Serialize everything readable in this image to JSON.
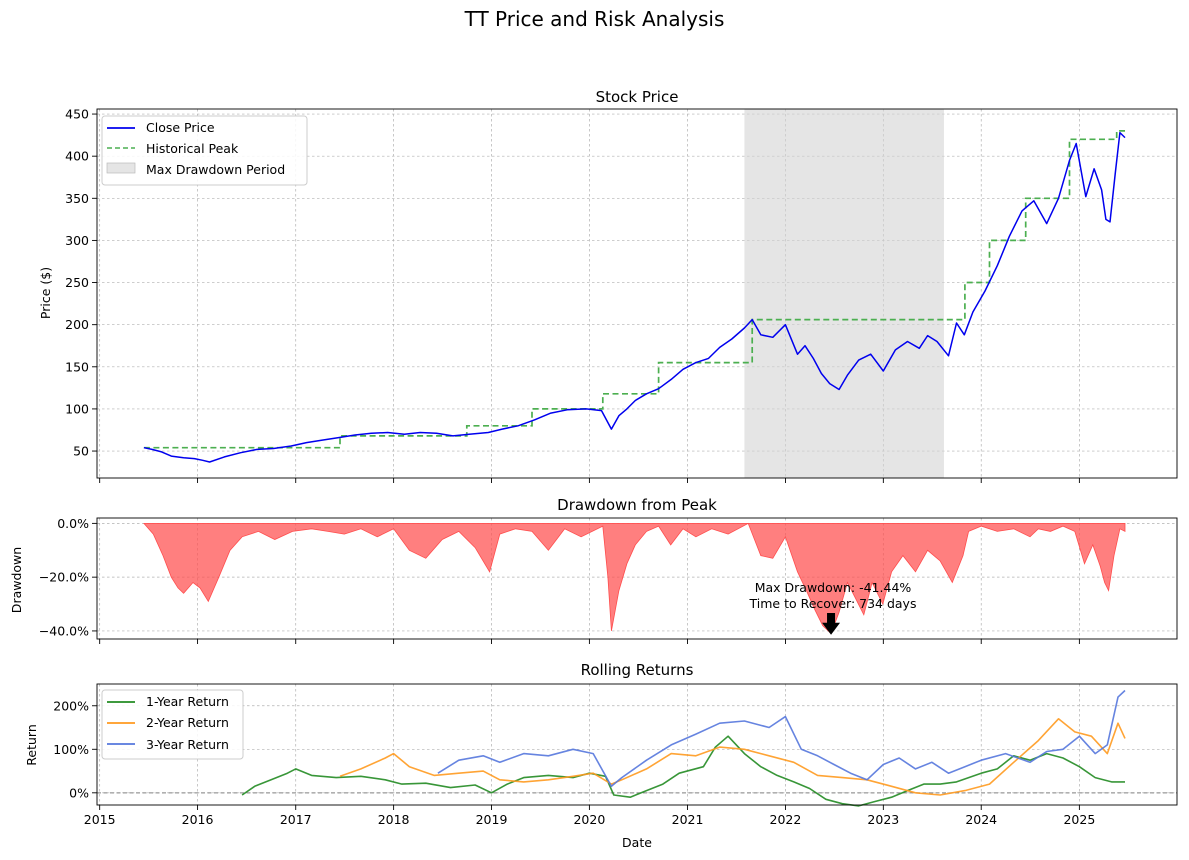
{
  "figure": {
    "title": "TT Price and Risk Analysis"
  },
  "colors": {
    "close": "#0000ee",
    "peak": "#4caf50",
    "shade": "#d3d3d3",
    "drawdown": "#ff4d4d",
    "r1": "#228b22",
    "r2": "#ff9a1f",
    "r3": "#5577dd"
  },
  "chart_data": [
    {
      "id": "price",
      "type": "line",
      "title": "Stock Price",
      "xlabel": "",
      "ylabel": "Price ($)",
      "xlim": [
        "2014-12-22",
        "2025-12-31"
      ],
      "ylim": [
        18,
        456
      ],
      "yticks": [
        50,
        100,
        150,
        200,
        250,
        300,
        350,
        400,
        450
      ],
      "grid": true,
      "legend": {
        "placement": "upper-left",
        "entries": [
          "Close Price",
          "Historical Peak",
          "Max Drawdown Period"
        ]
      },
      "max_drawdown_period": {
        "start": "2021-08-01",
        "end": "2023-08-15"
      },
      "series": [
        {
          "name": "Close Price",
          "x": [
            "2015-06-15",
            "2015-07-15",
            "2015-08-20",
            "2015-09-25",
            "2015-11-10",
            "2015-12-20",
            "2016-01-20",
            "2016-02-15",
            "2016-04-10",
            "2016-06-10",
            "2016-08-10",
            "2016-10-10",
            "2016-12-15",
            "2017-02-10",
            "2017-04-10",
            "2017-06-10",
            "2017-08-10",
            "2017-10-10",
            "2017-12-10",
            "2018-02-10",
            "2018-04-10",
            "2018-06-10",
            "2018-08-10",
            "2018-10-10",
            "2018-12-20",
            "2019-02-10",
            "2019-04-10",
            "2019-06-10",
            "2019-08-10",
            "2019-10-10",
            "2019-12-20",
            "2020-02-15",
            "2020-03-23",
            "2020-04-20",
            "2020-05-20",
            "2020-06-20",
            "2020-08-01",
            "2020-09-15",
            "2020-11-01",
            "2020-12-15",
            "2021-02-01",
            "2021-03-20",
            "2021-05-01",
            "2021-06-15",
            "2021-08-01",
            "2021-08-30",
            "2021-10-01",
            "2021-11-15",
            "2022-01-01",
            "2022-02-15",
            "2022-03-15",
            "2022-04-15",
            "2022-05-15",
            "2022-06-15",
            "2022-07-20",
            "2022-08-20",
            "2022-10-01",
            "2022-11-15",
            "2023-01-01",
            "2023-02-15",
            "2023-04-01",
            "2023-05-15",
            "2023-06-15",
            "2023-07-20",
            "2023-09-01",
            "2023-10-01",
            "2023-10-30",
            "2023-12-01",
            "2024-01-15",
            "2024-03-01",
            "2024-04-15",
            "2024-06-01",
            "2024-07-15",
            "2024-09-01",
            "2024-10-15",
            "2024-11-25",
            "2024-12-20",
            "2025-01-25",
            "2025-02-25",
            "2025-03-25",
            "2025-04-10",
            "2025-04-25",
            "2025-05-15",
            "2025-06-01",
            "2025-06-20"
          ],
          "y": [
            54,
            52,
            49,
            44,
            42,
            41,
            39,
            37,
            43,
            48,
            52,
            53,
            56,
            60,
            63,
            66,
            69,
            71,
            72,
            70,
            72,
            71,
            68,
            70,
            72,
            76,
            80,
            87,
            95,
            99,
            100,
            98,
            76,
            92,
            100,
            110,
            118,
            124,
            135,
            147,
            155,
            160,
            173,
            183,
            196,
            206,
            188,
            185,
            200,
            165,
            175,
            160,
            142,
            130,
            123,
            140,
            158,
            165,
            145,
            170,
            180,
            172,
            187,
            180,
            163,
            202,
            188,
            215,
            240,
            270,
            305,
            335,
            347,
            320,
            350,
            395,
            415,
            352,
            385,
            360,
            325,
            322,
            380,
            428,
            422
          ]
        },
        {
          "name": "Historical Peak",
          "x": [
            "2015-06-15",
            "2017-06-15",
            "2017-06-15",
            "2018-10-01",
            "2018-10-01",
            "2019-06-01",
            "2019-06-01",
            "2020-02-20",
            "2020-02-20",
            "2020-09-15",
            "2020-09-15",
            "2021-08-30",
            "2021-08-30",
            "2023-11-01",
            "2023-11-01",
            "2024-02-01",
            "2024-02-01",
            "2024-06-15",
            "2024-06-15",
            "2024-11-25",
            "2024-11-25",
            "2025-05-20",
            "2025-05-20",
            "2025-06-20"
          ],
          "y": [
            54,
            54,
            68,
            68,
            80,
            80,
            100,
            100,
            118,
            118,
            155,
            155,
            206,
            206,
            250,
            250,
            300,
            300,
            350,
            350,
            420,
            420,
            430,
            430
          ]
        }
      ]
    },
    {
      "id": "drawdown",
      "type": "area",
      "title": "Drawdown from Peak",
      "xlabel": "",
      "ylabel": "Drawdown",
      "xlim": [
        "2014-12-22",
        "2025-12-31"
      ],
      "ylim": [
        -0.43,
        0.02
      ],
      "yticks": [
        0.0,
        -0.2,
        -0.4
      ],
      "yticklabels": [
        "0.0%",
        "−20.0%",
        "−40.0%"
      ],
      "grid": true,
      "annotation": {
        "text_line1": "Max Drawdown: -41.44%",
        "text_line2": "Time to Recover: 734 days",
        "x": "2022-06-20",
        "y": -0.4144
      },
      "series": [
        {
          "name": "Drawdown",
          "x": [
            "2015-06-15",
            "2015-07-20",
            "2015-08-25",
            "2015-09-25",
            "2015-10-20",
            "2015-11-10",
            "2015-12-15",
            "2016-01-10",
            "2016-02-10",
            "2016-03-20",
            "2016-05-01",
            "2016-06-15",
            "2016-08-15",
            "2016-10-15",
            "2016-12-20",
            "2017-03-01",
            "2017-05-01",
            "2017-07-01",
            "2017-09-01",
            "2017-11-01",
            "2018-01-01",
            "2018-03-01",
            "2018-05-01",
            "2018-07-01",
            "2018-09-01",
            "2018-11-01",
            "2018-12-25",
            "2019-02-01",
            "2019-04-01",
            "2019-06-01",
            "2019-08-01",
            "2019-10-01",
            "2019-12-01",
            "2020-02-20",
            "2020-03-10",
            "2020-03-23",
            "2020-04-20",
            "2020-05-20",
            "2020-06-20",
            "2020-08-01",
            "2020-09-15",
            "2020-10-30",
            "2020-12-15",
            "2021-02-01",
            "2021-04-01",
            "2021-06-01",
            "2021-08-15",
            "2021-10-01",
            "2021-11-15",
            "2022-01-01",
            "2022-02-15",
            "2022-03-20",
            "2022-04-20",
            "2022-05-20",
            "2022-06-20",
            "2022-07-20",
            "2022-08-20",
            "2022-09-20",
            "2022-10-20",
            "2022-11-20",
            "2022-12-30",
            "2023-02-01",
            "2023-03-15",
            "2023-05-01",
            "2023-06-15",
            "2023-08-01",
            "2023-09-15",
            "2023-10-25",
            "2023-11-15",
            "2024-01-01",
            "2024-03-01",
            "2024-05-01",
            "2024-07-01",
            "2024-08-01",
            "2024-09-15",
            "2024-11-01",
            "2024-12-15",
            "2025-01-20",
            "2025-02-20",
            "2025-03-20",
            "2025-04-05",
            "2025-04-20",
            "2025-05-10",
            "2025-06-01",
            "2025-06-20"
          ],
          "y": [
            0,
            -0.04,
            -0.12,
            -0.2,
            -0.24,
            -0.26,
            -0.22,
            -0.24,
            -0.29,
            -0.2,
            -0.1,
            -0.05,
            -0.03,
            -0.06,
            -0.03,
            -0.02,
            -0.03,
            -0.04,
            -0.02,
            -0.05,
            -0.02,
            -0.1,
            -0.13,
            -0.06,
            -0.03,
            -0.09,
            -0.18,
            -0.04,
            -0.02,
            -0.03,
            -0.1,
            -0.02,
            -0.05,
            -0.01,
            -0.2,
            -0.4,
            -0.25,
            -0.15,
            -0.08,
            -0.03,
            -0.01,
            -0.08,
            -0.02,
            -0.05,
            -0.02,
            -0.04,
            0,
            -0.12,
            -0.13,
            -0.05,
            -0.18,
            -0.25,
            -0.32,
            -0.38,
            -0.41,
            -0.33,
            -0.22,
            -0.28,
            -0.34,
            -0.22,
            -0.3,
            -0.18,
            -0.12,
            -0.18,
            -0.1,
            -0.14,
            -0.22,
            -0.12,
            -0.03,
            -0.01,
            -0.03,
            -0.02,
            -0.05,
            -0.02,
            -0.03,
            -0.01,
            -0.03,
            -0.15,
            -0.08,
            -0.16,
            -0.22,
            -0.25,
            -0.12,
            -0.02,
            -0.03
          ]
        }
      ]
    },
    {
      "id": "rolling",
      "type": "line",
      "title": "Rolling Returns",
      "xlabel": "Date",
      "ylabel": "Return",
      "xlim": [
        "2014-12-22",
        "2025-12-31"
      ],
      "ylim": [
        -0.28,
        2.5
      ],
      "yticks": [
        0,
        1,
        2
      ],
      "yticklabels": [
        "0%",
        "100%",
        "200%"
      ],
      "xticks": [
        "2015-01-01",
        "2016-01-01",
        "2017-01-01",
        "2018-01-01",
        "2019-01-01",
        "2020-01-01",
        "2021-01-01",
        "2022-01-01",
        "2023-01-01",
        "2024-01-01",
        "2025-01-01"
      ],
      "xticklabels": [
        "2015",
        "2016",
        "2017",
        "2018",
        "2019",
        "2020",
        "2021",
        "2022",
        "2023",
        "2024",
        "2025"
      ],
      "grid": true,
      "legend": {
        "placement": "upper-left",
        "entries": [
          "1-Year Return",
          "2-Year Return",
          "3-Year Return"
        ]
      },
      "series": [
        {
          "name": "1-Year Return",
          "x": [
            "2016-06-15",
            "2016-08-01",
            "2016-10-01",
            "2016-12-01",
            "2017-01-01",
            "2017-03-01",
            "2017-06-01",
            "2017-09-01",
            "2017-12-01",
            "2018-02-01",
            "2018-05-01",
            "2018-08-01",
            "2018-11-01",
            "2019-01-01",
            "2019-03-01",
            "2019-05-01",
            "2019-08-01",
            "2019-11-01",
            "2020-01-01",
            "2020-03-01",
            "2020-04-01",
            "2020-06-01",
            "2020-08-01",
            "2020-10-01",
            "2020-12-01",
            "2021-03-01",
            "2021-04-15",
            "2021-06-01",
            "2021-08-01",
            "2021-10-01",
            "2021-12-01",
            "2022-02-01",
            "2022-04-01",
            "2022-06-01",
            "2022-08-01",
            "2022-10-01",
            "2022-12-01",
            "2023-02-01",
            "2023-04-01",
            "2023-06-01",
            "2023-08-01",
            "2023-10-01",
            "2024-01-01",
            "2024-03-01",
            "2024-05-01",
            "2024-07-01",
            "2024-09-01",
            "2024-11-01",
            "2025-01-01",
            "2025-03-01",
            "2025-05-01",
            "2025-06-20"
          ],
          "y": [
            -0.05,
            0.15,
            0.3,
            0.45,
            0.55,
            0.4,
            0.35,
            0.38,
            0.3,
            0.2,
            0.22,
            0.12,
            0.18,
            0.0,
            0.2,
            0.35,
            0.4,
            0.35,
            0.45,
            0.38,
            -0.05,
            -0.1,
            0.05,
            0.2,
            0.45,
            0.6,
            1.05,
            1.3,
            0.9,
            0.6,
            0.4,
            0.25,
            0.1,
            -0.15,
            -0.25,
            -0.3,
            -0.2,
            -0.1,
            0.05,
            0.2,
            0.2,
            0.25,
            0.45,
            0.55,
            0.85,
            0.75,
            0.9,
            0.8,
            0.6,
            0.35,
            0.25,
            0.25
          ]
        },
        {
          "name": "2-Year Return",
          "x": [
            "2017-06-15",
            "2017-09-01",
            "2017-12-01",
            "2018-01-01",
            "2018-03-01",
            "2018-06-01",
            "2018-09-01",
            "2018-12-01",
            "2019-02-01",
            "2019-05-01",
            "2019-08-01",
            "2019-11-01",
            "2020-01-15",
            "2020-03-23",
            "2020-05-01",
            "2020-08-01",
            "2020-11-01",
            "2021-02-01",
            "2021-05-01",
            "2021-08-01",
            "2021-11-01",
            "2022-02-01",
            "2022-05-01",
            "2022-08-01",
            "2022-11-01",
            "2023-02-01",
            "2023-05-01",
            "2023-08-01",
            "2023-11-01",
            "2024-02-01",
            "2024-05-01",
            "2024-08-01",
            "2024-10-15",
            "2024-12-15",
            "2025-02-15",
            "2025-04-15",
            "2025-05-25",
            "2025-06-20"
          ],
          "y": [
            0.38,
            0.55,
            0.8,
            0.9,
            0.6,
            0.4,
            0.45,
            0.5,
            0.3,
            0.25,
            0.3,
            0.38,
            0.45,
            0.2,
            0.3,
            0.55,
            0.9,
            0.85,
            1.05,
            1.0,
            0.85,
            0.7,
            0.4,
            0.35,
            0.3,
            0.15,
            0.0,
            -0.05,
            0.05,
            0.2,
            0.7,
            1.2,
            1.7,
            1.4,
            1.3,
            0.9,
            1.6,
            1.25
          ]
        },
        {
          "name": "3-Year Return",
          "x": [
            "2018-06-15",
            "2018-09-01",
            "2018-12-01",
            "2019-02-01",
            "2019-05-01",
            "2019-08-01",
            "2019-11-01",
            "2020-01-15",
            "2020-03-23",
            "2020-05-01",
            "2020-08-01",
            "2020-11-01",
            "2021-02-01",
            "2021-05-01",
            "2021-08-01",
            "2021-11-01",
            "2022-01-01",
            "2022-03-01",
            "2022-05-01",
            "2022-07-01",
            "2022-09-01",
            "2022-11-01",
            "2023-01-01",
            "2023-03-01",
            "2023-05-01",
            "2023-07-01",
            "2023-09-01",
            "2023-11-01",
            "2024-01-01",
            "2024-04-01",
            "2024-07-01",
            "2024-09-01",
            "2024-11-01",
            "2025-01-01",
            "2025-03-01",
            "2025-04-15",
            "2025-05-25",
            "2025-06-20"
          ],
          "y": [
            0.45,
            0.75,
            0.85,
            0.7,
            0.9,
            0.85,
            1.0,
            0.9,
            0.15,
            0.35,
            0.75,
            1.1,
            1.35,
            1.6,
            1.65,
            1.5,
            1.75,
            1.0,
            0.85,
            0.65,
            0.45,
            0.3,
            0.65,
            0.8,
            0.55,
            0.7,
            0.45,
            0.6,
            0.75,
            0.9,
            0.7,
            0.95,
            1.0,
            1.3,
            0.9,
            1.1,
            2.2,
            2.35
          ]
        }
      ]
    }
  ]
}
